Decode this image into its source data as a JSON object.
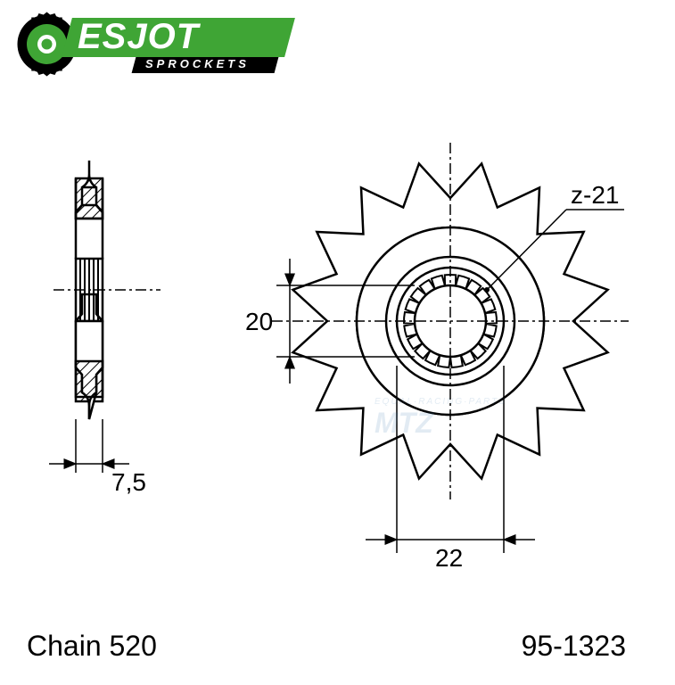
{
  "logo": {
    "brand": "ESJOT",
    "subtitle": "SPROCKETS",
    "band_color": "#3fa535",
    "sub_band_color": "#000000",
    "gear_outer_color": "#000000",
    "gear_inner_color": "#3fa535",
    "gear_center_color": "#ffffff",
    "text_color": "#ffffff"
  },
  "drawing": {
    "stroke_color": "#000000",
    "stroke_width": 2.5,
    "dim_line_width": 1.5,
    "hatch_color": "#000000",
    "centerline_dash": "12 4 3 4",
    "font_size": 28,
    "font_family": "Arial",
    "side_view": {
      "dim_width": "7,5"
    },
    "front_view": {
      "teeth_count": 16,
      "spline_count": 21,
      "dim_inner": "20",
      "dim_outer": "22",
      "spline_label": "z-21"
    }
  },
  "labels": {
    "chain": "Chain 520",
    "part_number": "95-1323"
  },
  "watermark": {
    "text": "MTZ",
    "subtext": "EQUAL·RACING·PARTS",
    "color": "#4682b4",
    "opacity": 0.15
  },
  "colors": {
    "background": "#ffffff",
    "black": "#000000"
  }
}
